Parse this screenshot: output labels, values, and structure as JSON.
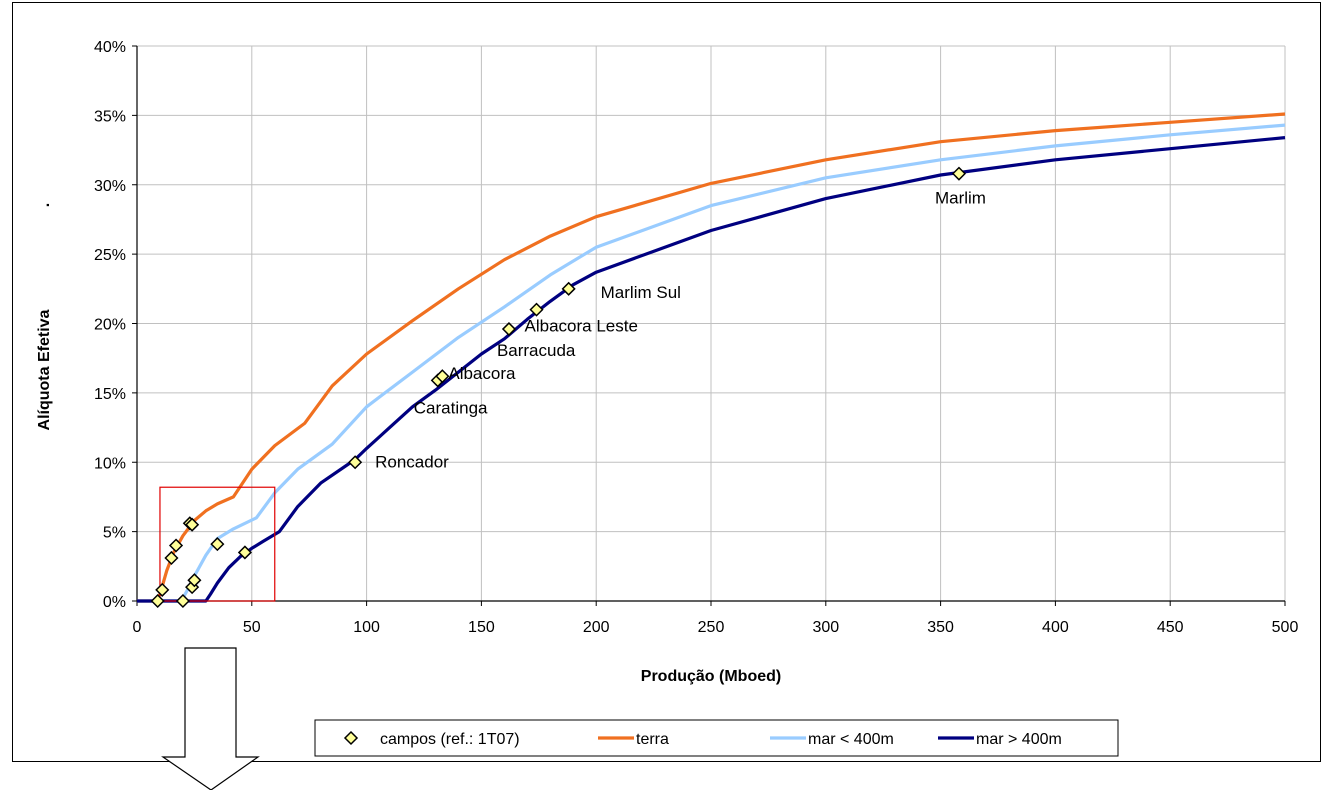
{
  "chart_data": {
    "type": "line",
    "title": "",
    "xlabel": "Produção (Mboed)",
    "ylabel": "Alíquota Efetiva",
    "ylabel_mark": ".",
    "xlim": [
      0,
      500
    ],
    "ylim": [
      0,
      0.4
    ],
    "x_ticks": [
      "0",
      "50",
      "100",
      "150",
      "200",
      "250",
      "300",
      "350",
      "400",
      "450",
      "500"
    ],
    "y_ticks": [
      "0%",
      "5%",
      "10%",
      "15%",
      "20%",
      "25%",
      "30%",
      "35%",
      "40%"
    ],
    "grid": true,
    "legend_position": "bottom",
    "series": [
      {
        "name": "terra",
        "color": "#f07020",
        "x": [
          0,
          8,
          10,
          13,
          16,
          20,
          25,
          30,
          35,
          42,
          50,
          60,
          73,
          85,
          100,
          120,
          140,
          160,
          180,
          200,
          250,
          300,
          350,
          400,
          450,
          500
        ],
        "y": [
          0,
          0,
          0.005,
          0.022,
          0.035,
          0.047,
          0.058,
          0.065,
          0.07,
          0.075,
          0.095,
          0.112,
          0.128,
          0.155,
          0.178,
          0.202,
          0.225,
          0.246,
          0.263,
          0.277,
          0.301,
          0.318,
          0.331,
          0.339,
          0.345,
          0.351
        ]
      },
      {
        "name": "mar < 400m",
        "color": "#99ccff",
        "x": [
          0,
          18,
          20,
          22,
          25,
          30,
          35,
          42,
          52,
          60,
          70,
          85,
          100,
          120,
          140,
          160,
          180,
          200,
          250,
          300,
          350,
          400,
          450,
          500
        ],
        "y": [
          0,
          0,
          0.002,
          0.008,
          0.018,
          0.033,
          0.045,
          0.052,
          0.06,
          0.078,
          0.095,
          0.113,
          0.14,
          0.165,
          0.19,
          0.212,
          0.235,
          0.255,
          0.285,
          0.305,
          0.318,
          0.328,
          0.336,
          0.343
        ]
      },
      {
        "name": "mar > 400m",
        "color": "#000080",
        "x": [
          0,
          30,
          32,
          35,
          40,
          45,
          50,
          55,
          62,
          70,
          80,
          95,
          100,
          110,
          120,
          130,
          140,
          150,
          160,
          170,
          180,
          190,
          200,
          250,
          300,
          350,
          400,
          450,
          500
        ],
        "y": [
          0,
          0,
          0.005,
          0.013,
          0.024,
          0.032,
          0.038,
          0.043,
          0.05,
          0.068,
          0.085,
          0.102,
          0.11,
          0.125,
          0.14,
          0.152,
          0.165,
          0.178,
          0.189,
          0.203,
          0.216,
          0.228,
          0.237,
          0.267,
          0.29,
          0.307,
          0.318,
          0.326,
          0.334
        ]
      }
    ],
    "points": {
      "name": "campos (ref.: 1T07)",
      "marker_fill": "#ffff99",
      "x": [
        9,
        11,
        15,
        17,
        20,
        23,
        24,
        24,
        25,
        35,
        47,
        95,
        131,
        133,
        162,
        174,
        188,
        358
      ],
      "y": [
        0,
        0.008,
        0.031,
        0.04,
        0,
        0.056,
        0.055,
        0.01,
        0.015,
        0.041,
        0.035,
        0.1,
        0.159,
        0.162,
        0.196,
        0.21,
        0.225,
        0.308
      ]
    },
    "annotations": [
      {
        "text": "Marlim",
        "x": 358,
        "y": 0.308
      },
      {
        "text": "Marlim Sul",
        "x": 188,
        "y": 0.225
      },
      {
        "text": "Albacora Leste",
        "x": 174,
        "y": 0.21
      },
      {
        "text": "Barracuda",
        "x": 162,
        "y": 0.196
      },
      {
        "text": "Albacora",
        "x": 133,
        "y": 0.162
      },
      {
        "text": "Caratinga",
        "x": 131,
        "y": 0.159
      },
      {
        "text": "Roncador",
        "x": 95,
        "y": 0.1
      }
    ],
    "highlight_box": {
      "x": [
        10,
        60
      ],
      "y": [
        0,
        0.082
      ],
      "color": "#e00000"
    }
  }
}
